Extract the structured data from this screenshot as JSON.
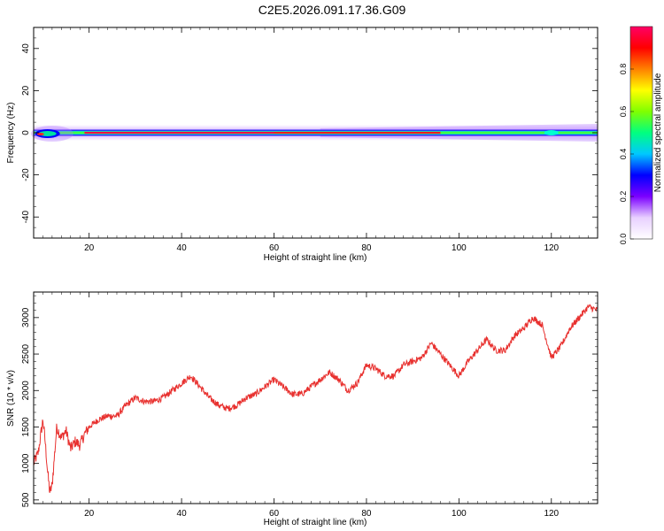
{
  "title": "C2E5.2026.091.17.36.G09",
  "chart_data": [
    {
      "type": "heatmap",
      "xlabel": "Height of straight line (km)",
      "ylabel": "Frequency (Hz)",
      "xlim": [
        8,
        130
      ],
      "ylim": [
        -50,
        50
      ],
      "xticks": [
        "20",
        "40",
        "60",
        "80",
        "100",
        "120"
      ],
      "xtick_values": [
        20,
        40,
        60,
        80,
        100,
        120
      ],
      "yticks": [
        "40",
        "20",
        "0",
        "-20",
        "-40"
      ],
      "ytick_values": [
        40,
        20,
        0,
        -20,
        -40
      ],
      "colorbar": {
        "label": "Normalized spectral amplitude",
        "ticks": [
          "0.0",
          "0.2",
          "0.4",
          "0.6",
          "0.8"
        ],
        "tick_values": [
          0,
          0.2,
          0.4,
          0.6,
          0.8
        ],
        "range": [
          0,
          1
        ],
        "colormap": [
          "#ffffff",
          "#e8d0ff",
          "#7b00ff",
          "#0000ff",
          "#00c8ff",
          "#00ff80",
          "#80ff00",
          "#ffff00",
          "#ff8000",
          "#ff0000",
          "#ff0066"
        ]
      },
      "band": {
        "center_hz": 0,
        "description_note": "narrow band near 0 Hz"
      }
    },
    {
      "type": "line",
      "xlabel": "Height of straight line (km)",
      "ylabel": "SNR (10 * v/v)",
      "xlim": [
        8,
        130
      ],
      "ylim": [
        450,
        3350
      ],
      "xticks": [
        "20",
        "40",
        "60",
        "80",
        "100",
        "120"
      ],
      "xtick_values": [
        20,
        40,
        60,
        80,
        100,
        120
      ],
      "yticks": [
        "500",
        "1000",
        "1500",
        "2000",
        "2500",
        "3000"
      ],
      "ytick_values": [
        500,
        1000,
        1500,
        2000,
        2500,
        3000
      ],
      "series_color": "#e8312f",
      "series": [
        {
          "x": [
            8,
            9,
            10,
            10.5,
            11,
            11.5,
            12,
            13,
            14,
            15,
            16,
            17,
            18,
            19,
            20,
            22,
            24,
            26,
            28,
            30,
            32,
            34,
            36,
            38,
            40,
            42,
            44,
            46,
            48,
            50,
            52,
            54,
            56,
            58,
            60,
            62,
            64,
            66,
            68,
            70,
            72,
            74,
            76,
            78,
            80,
            82,
            84,
            86,
            88,
            90,
            92,
            94,
            96,
            98,
            100,
            102,
            104,
            106,
            108,
            110,
            112,
            114,
            116,
            118,
            120,
            122,
            124,
            126,
            128,
            130
          ],
          "y": [
            1000,
            1150,
            1600,
            1300,
            900,
            600,
            700,
            1500,
            1350,
            1450,
            1200,
            1300,
            1250,
            1400,
            1500,
            1600,
            1650,
            1650,
            1800,
            1900,
            1850,
            1850,
            1900,
            2000,
            2100,
            2200,
            2050,
            1900,
            1800,
            1750,
            1800,
            1900,
            1950,
            2050,
            2150,
            2050,
            1950,
            1950,
            2050,
            2150,
            2250,
            2150,
            2000,
            2100,
            2350,
            2300,
            2200,
            2200,
            2350,
            2400,
            2450,
            2650,
            2500,
            2350,
            2200,
            2400,
            2550,
            2700,
            2550,
            2550,
            2750,
            2850,
            3000,
            2900,
            2450,
            2600,
            2850,
            3000,
            3150,
            3100
          ]
        }
      ]
    }
  ]
}
